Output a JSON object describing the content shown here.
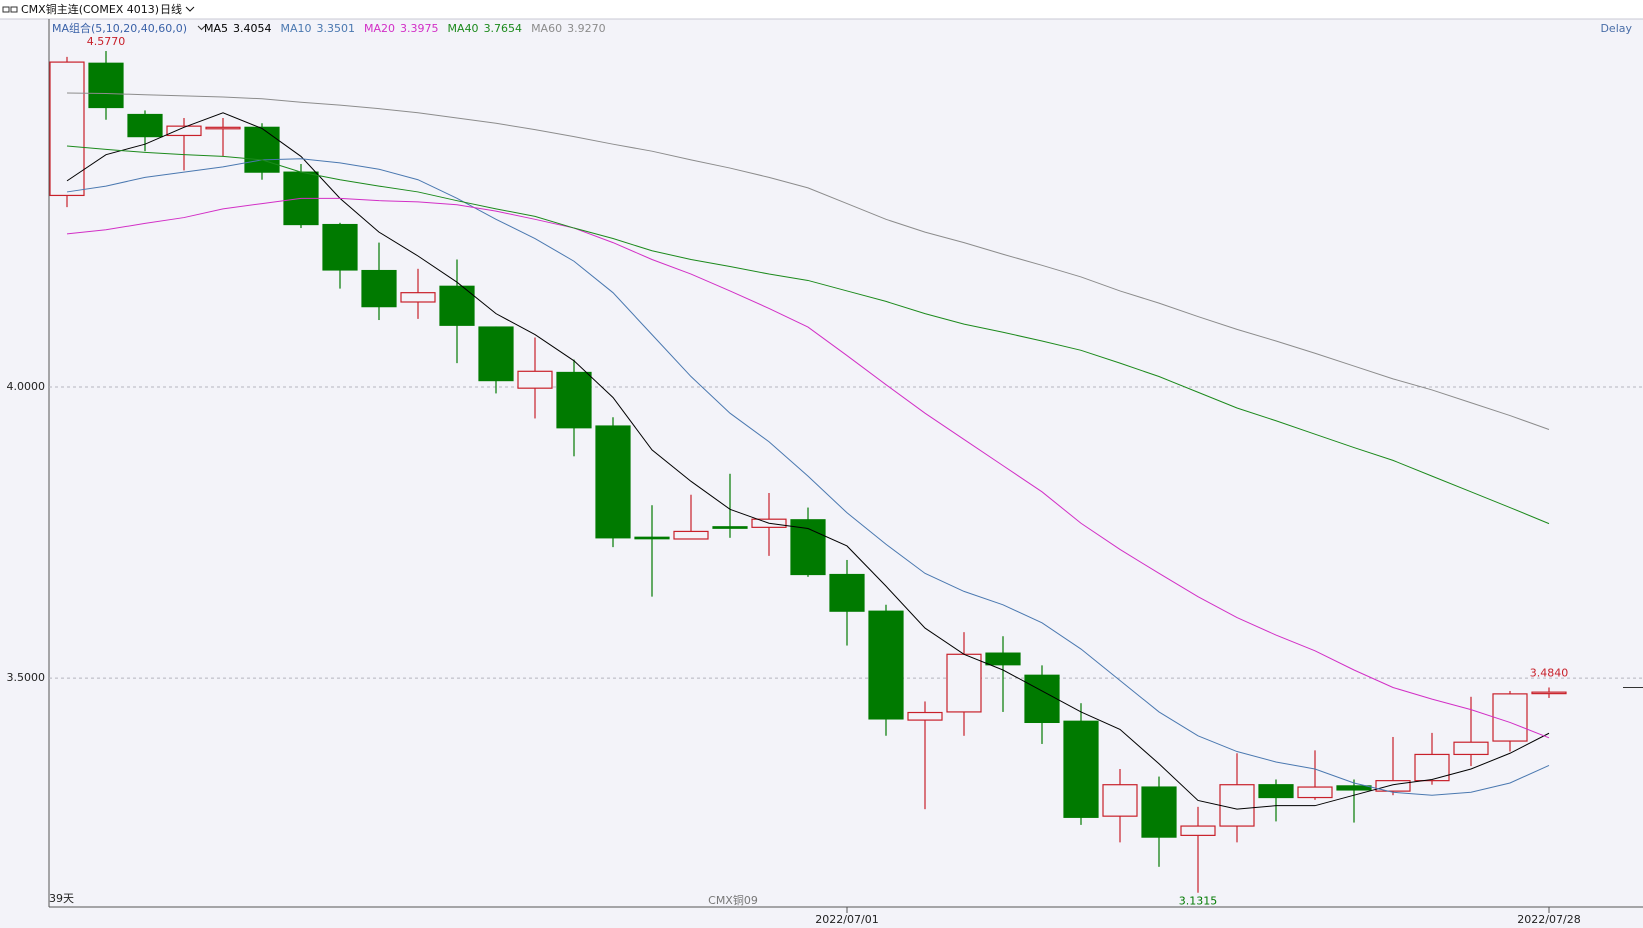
{
  "chart_data": {
    "type": "candlestick",
    "title": "CMX铜主连(COMEX 4013)",
    "period": "日线",
    "ma_label": "MA组合(5,10,20,40,60,0)",
    "status": "Delay",
    "day_count": "39天",
    "contract_note": "CMX铜09",
    "categories": [
      null,
      null,
      null,
      null,
      null,
      null,
      null,
      null,
      null,
      null,
      null,
      null,
      null,
      null,
      null,
      null,
      null,
      null,
      null,
      null,
      "2022/07/01",
      null,
      null,
      null,
      null,
      null,
      null,
      null,
      null,
      null,
      null,
      null,
      null,
      null,
      null,
      null,
      null,
      null,
      "2022/07/28"
    ],
    "open": [
      4.329,
      4.556,
      4.468,
      4.432,
      4.444,
      4.446,
      4.369,
      4.279,
      4.2,
      4.146,
      4.173,
      4.103,
      3.998,
      4.025,
      3.933,
      3.742,
      3.739,
      3.76,
      3.759,
      3.772,
      3.678,
      3.615,
      3.428,
      3.442,
      3.543,
      3.505,
      3.426,
      3.263,
      3.313,
      3.23,
      3.246,
      3.317,
      3.295,
      3.315,
      3.306,
      3.324,
      3.369,
      3.392,
      3.474
    ],
    "high": [
      4.567,
      4.577,
      4.475,
      4.462,
      4.462,
      4.453,
      4.383,
      4.282,
      4.248,
      4.203,
      4.219,
      4.104,
      4.085,
      4.047,
      3.948,
      3.797,
      3.815,
      3.851,
      3.818,
      3.793,
      3.703,
      3.626,
      3.46,
      3.579,
      3.572,
      3.522,
      3.457,
      3.344,
      3.331,
      3.279,
      3.371,
      3.326,
      3.376,
      3.326,
      3.399,
      3.406,
      3.468,
      3.478,
      3.484
    ],
    "low": [
      4.309,
      4.459,
      4.405,
      4.372,
      4.396,
      4.356,
      4.273,
      4.169,
      4.115,
      4.117,
      4.041,
      3.989,
      3.946,
      3.881,
      3.725,
      3.64,
      3.739,
      3.741,
      3.71,
      3.674,
      3.556,
      3.401,
      3.275,
      3.401,
      3.442,
      3.387,
      3.248,
      3.218,
      3.176,
      3.1315,
      3.218,
      3.254,
      3.291,
      3.252,
      3.299,
      3.317,
      3.349,
      3.374,
      3.466
    ],
    "close": [
      4.558,
      4.48,
      4.43,
      4.448,
      4.446,
      4.369,
      4.279,
      4.201,
      4.138,
      4.162,
      4.106,
      4.011,
      4.027,
      3.93,
      3.741,
      3.74,
      3.752,
      3.758,
      3.773,
      3.678,
      3.615,
      3.43,
      3.441,
      3.541,
      3.523,
      3.424,
      3.261,
      3.317,
      3.227,
      3.246,
      3.317,
      3.295,
      3.313,
      3.308,
      3.324,
      3.369,
      3.39,
      3.473,
      3.476
    ],
    "up_color": "#c8202a",
    "down_color": "#007a00",
    "ma_series": [
      {
        "name": "MA5",
        "color": "#000000",
        "value_label": "3.4054",
        "values": [
          4.354,
          4.399,
          4.417,
          4.446,
          4.471,
          4.444,
          4.396,
          4.324,
          4.266,
          4.225,
          4.18,
          4.126,
          4.09,
          4.045,
          3.982,
          3.892,
          3.838,
          3.79,
          3.766,
          3.757,
          3.727,
          3.658,
          3.586,
          3.541,
          3.514,
          3.478,
          3.442,
          3.412,
          3.353,
          3.29,
          3.275,
          3.281,
          3.281,
          3.299,
          3.317,
          3.326,
          3.344,
          3.371,
          3.4054
        ]
      },
      {
        "name": "MA10",
        "color": "#4a78b0",
        "value_label": "3.3501",
        "values": [
          4.335,
          4.345,
          4.36,
          4.369,
          4.378,
          4.39,
          4.392,
          4.385,
          4.374,
          4.356,
          4.324,
          4.288,
          4.255,
          4.216,
          4.162,
          4.09,
          4.018,
          3.955,
          3.906,
          3.847,
          3.784,
          3.73,
          3.68,
          3.649,
          3.626,
          3.595,
          3.55,
          3.496,
          3.442,
          3.401,
          3.374,
          3.356,
          3.344,
          3.32,
          3.304,
          3.299,
          3.304,
          3.32,
          3.3501
        ]
      },
      {
        "name": "MA20",
        "color": "#d22fc6",
        "value_label": "3.3975",
        "values": [
          4.263,
          4.27,
          4.281,
          4.291,
          4.306,
          4.315,
          4.324,
          4.324,
          4.32,
          4.318,
          4.313,
          4.302,
          4.288,
          4.273,
          4.248,
          4.219,
          4.194,
          4.165,
          4.135,
          4.103,
          4.054,
          4.004,
          3.955,
          3.91,
          3.865,
          3.82,
          3.766,
          3.721,
          3.68,
          3.64,
          3.604,
          3.574,
          3.547,
          3.514,
          3.484,
          3.464,
          3.446,
          3.424,
          3.3975
        ]
      },
      {
        "name": "MA40",
        "color": "#1c8a1c",
        "value_label": "3.7654",
        "values": [
          4.414,
          4.408,
          4.403,
          4.399,
          4.396,
          4.39,
          4.369,
          4.356,
          4.345,
          4.335,
          4.32,
          4.306,
          4.293,
          4.273,
          4.255,
          4.234,
          4.219,
          4.207,
          4.194,
          4.183,
          4.165,
          4.147,
          4.126,
          4.108,
          4.094,
          4.079,
          4.063,
          4.041,
          4.018,
          3.991,
          3.964,
          3.942,
          3.919,
          3.896,
          3.874,
          3.847,
          3.82,
          3.793,
          3.7654
        ]
      },
      {
        "name": "MA60",
        "color": "#8c8c8c",
        "value_label": "3.9270",
        "values": [
          4.505,
          4.504,
          4.502,
          4.5,
          4.498,
          4.495,
          4.489,
          4.484,
          4.478,
          4.471,
          4.462,
          4.453,
          4.442,
          4.43,
          4.417,
          4.405,
          4.39,
          4.376,
          4.36,
          4.342,
          4.315,
          4.288,
          4.266,
          4.248,
          4.228,
          4.209,
          4.189,
          4.165,
          4.144,
          4.121,
          4.099,
          4.079,
          4.058,
          4.036,
          4.014,
          3.995,
          3.973,
          3.951,
          3.927
        ]
      }
    ],
    "high_label": "4.5770",
    "low_label": "3.1315",
    "last_label": "3.4840",
    "ylim": [
      3.107,
      4.632
    ],
    "yticks": [
      {
        "value": 3.5,
        "label": "3.5000"
      },
      {
        "value": 4,
        "label": "4.0000"
      }
    ],
    "grid": true
  }
}
